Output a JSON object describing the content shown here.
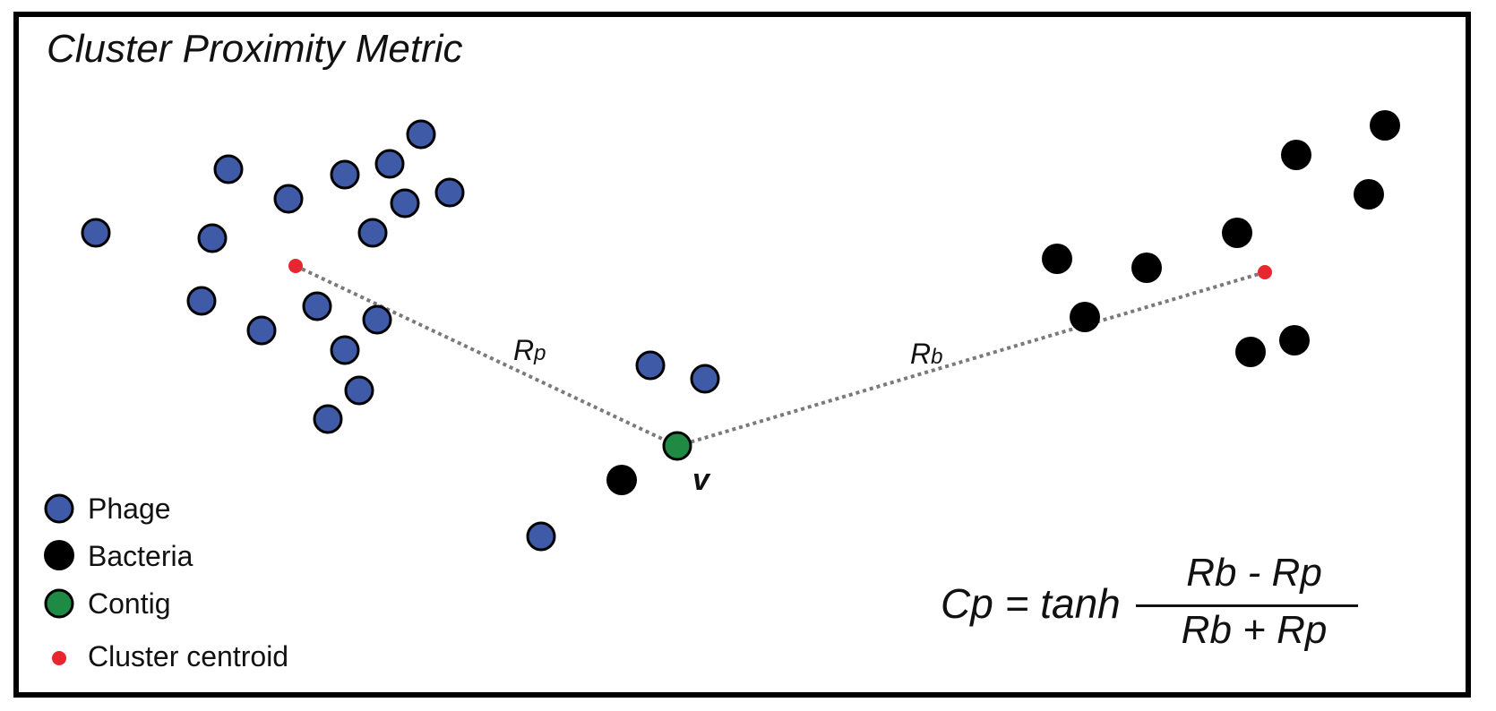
{
  "title": "Cluster Proximity Metric",
  "legend": [
    {
      "label": "Phage",
      "marker": "phage"
    },
    {
      "label": "Bacteria",
      "marker": "bacteria"
    },
    {
      "label": "Contig",
      "marker": "contig"
    },
    {
      "label": "Cluster centroid",
      "marker": "centroid"
    }
  ],
  "labels": {
    "rp_main": "R",
    "rp_sub": "p",
    "rb_main": "R",
    "rb_sub": "b",
    "contig": "v"
  },
  "formula": {
    "lhs": "Cp = tanh",
    "numerator": "Rb - Rp",
    "denominator": "Rb + Rp"
  },
  "colors": {
    "phage": "#3f5aa6",
    "bacteria": "#000000",
    "contig": "#1f8a43",
    "centroid": "#e8262f",
    "distance_line": "#7a7a7a"
  }
}
